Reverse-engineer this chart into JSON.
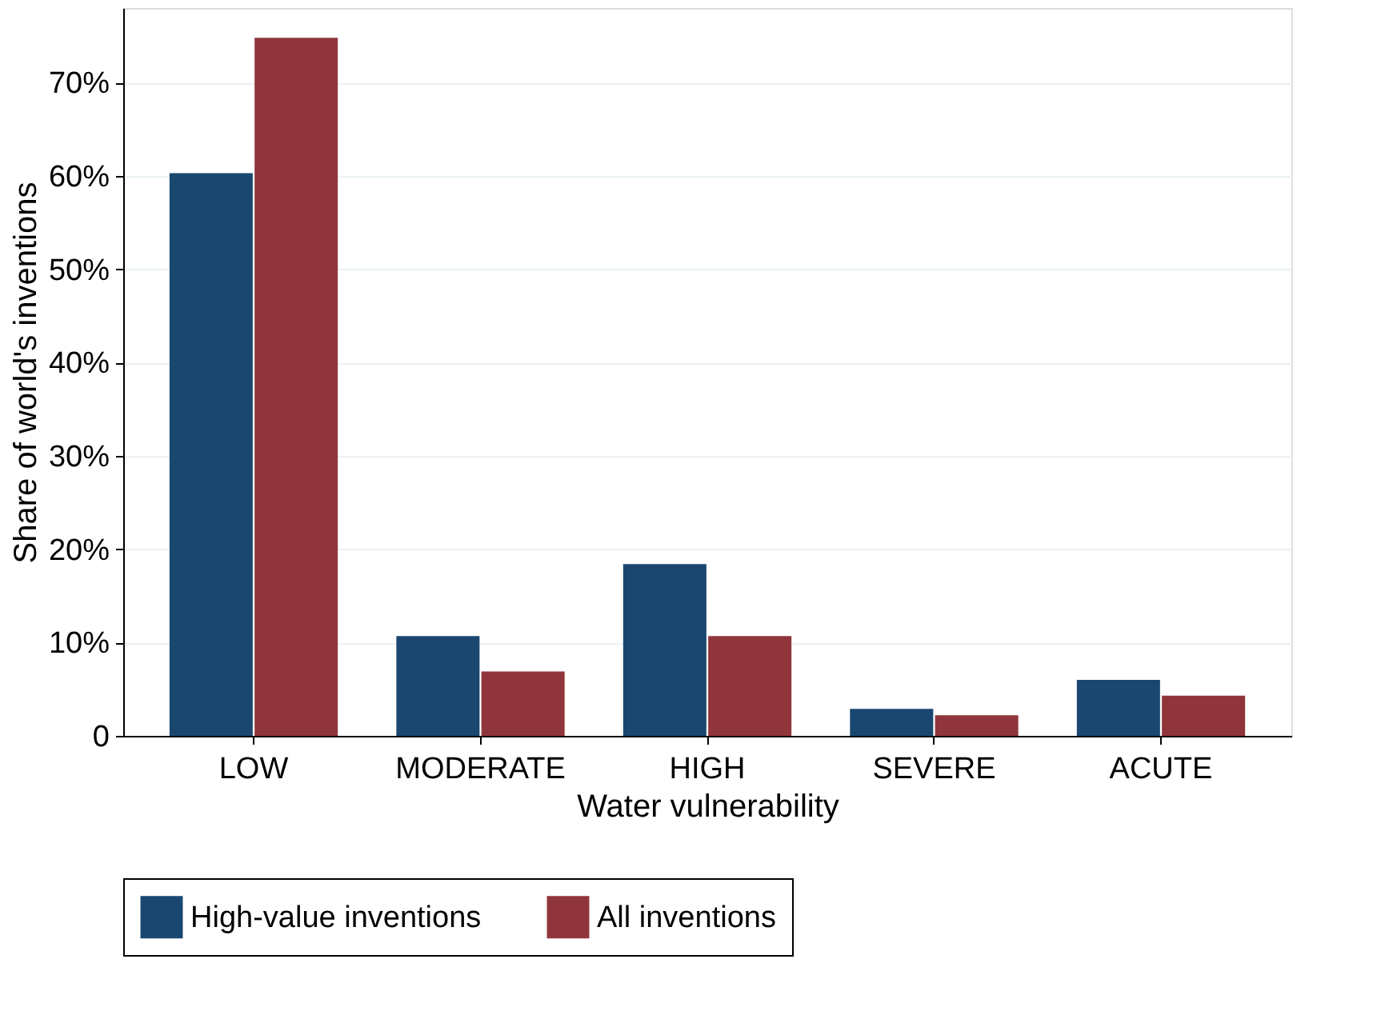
{
  "chart_data": {
    "type": "bar",
    "xlabel": "Water vulnerability",
    "ylabel": "Share of world's inventions",
    "categories": [
      "LOW",
      "MODERATE",
      "HIGH",
      "SEVERE",
      "ACUTE"
    ],
    "series": [
      {
        "name": "High-value inventions",
        "color": "#1a476f",
        "values": [
          60.3,
          10.7,
          18.4,
          2.9,
          6.0
        ]
      },
      {
        "name": "All inventions",
        "color": "#90353b",
        "values": [
          74.8,
          6.9,
          10.7,
          2.2,
          4.3
        ]
      }
    ],
    "ylim": [
      0,
      78
    ],
    "yticks": [
      {
        "value": 0,
        "label": "0"
      },
      {
        "value": 10,
        "label": "10%"
      },
      {
        "value": 20,
        "label": "20%"
      },
      {
        "value": 30,
        "label": "30%"
      },
      {
        "value": 40,
        "label": "40%"
      },
      {
        "value": 50,
        "label": "50%"
      },
      {
        "value": 60,
        "label": "60%"
      },
      {
        "value": 70,
        "label": "70%"
      }
    ],
    "grid": "y",
    "legend": "bottom"
  }
}
